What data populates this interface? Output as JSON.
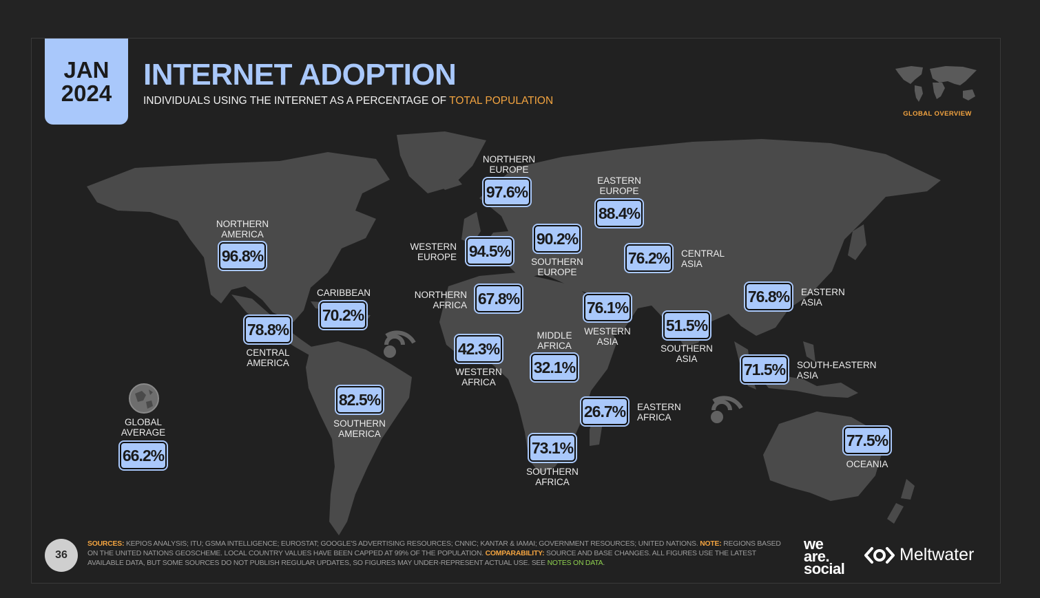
{
  "header": {
    "date_month": "JAN",
    "date_year": "2024",
    "title": "INTERNET ADOPTION",
    "subtitle_prefix": "INDIVIDUALS USING THE INTERNET AS A PERCENTAGE OF",
    "subtitle_highlight": "TOTAL POPULATION",
    "overview_label": "GLOBAL OVERVIEW"
  },
  "colors": {
    "accent_blue": "#a9c8fb",
    "accent_orange": "#f3a440",
    "map_land": "#4a4a4a",
    "background": "#212121"
  },
  "icons": {
    "watermark": "broadcast-logo-icon",
    "global": "globe-icon",
    "meltwater": "meltwater-logo-icon"
  },
  "regions": [
    {
      "name": "NORTHERN\nEUROPE",
      "value": "97.6%"
    },
    {
      "name": "EASTERN\nEUROPE",
      "value": "88.4%"
    },
    {
      "name": "NORTHERN\nAMERICA",
      "value": "96.8%"
    },
    {
      "name": "WESTERN\nEUROPE",
      "value": "94.5%"
    },
    {
      "name": "SOUTHERN\nEUROPE",
      "value": "90.2%"
    },
    {
      "name": "CENTRAL\nASIA",
      "value": "76.2%"
    },
    {
      "name": "CARIBBEAN",
      "value": "70.2%"
    },
    {
      "name": "NORTHERN\nAFRICA",
      "value": "67.8%"
    },
    {
      "name": "EASTERN\nASIA",
      "value": "76.8%"
    },
    {
      "name": "WESTERN\nASIA",
      "value": "76.1%"
    },
    {
      "name": "CENTRAL\nAMERICA",
      "value": "78.8%"
    },
    {
      "name": "SOUTHERN\nASIA",
      "value": "51.5%"
    },
    {
      "name": "MIDDLE\nAFRICA",
      "value": "32.1%"
    },
    {
      "name": "WESTERN\nAFRICA",
      "value": "42.3%"
    },
    {
      "name": "SOUTH-EASTERN\nASIA",
      "value": "71.5%"
    },
    {
      "name": "SOUTHERN\nAMERICA",
      "value": "82.5%"
    },
    {
      "name": "EASTERN\nAFRICA",
      "value": "26.7%"
    },
    {
      "name": "SOUTHERN\nAFRICA",
      "value": "73.1%"
    },
    {
      "name": "OCEANIA",
      "value": "77.5%"
    }
  ],
  "global_average": {
    "label": "GLOBAL\nAVERAGE",
    "value": "66.2%"
  },
  "footer": {
    "page_number": "36",
    "sources_key": "SOURCES:",
    "sources_text": "KEPIOS ANALYSIS; ITU; GSMA INTELLIGENCE; EUROSTAT; GOOGLE'S ADVERTISING RESOURCES; CNNIC; KANTAR & IAMAI; GOVERNMENT RESOURCES; UNITED NATIONS.",
    "note_key": "NOTE:",
    "note_text": "REGIONS BASED ON THE UNITED NATIONS GEOSCHEME. LOCAL COUNTRY VALUES HAVE BEEN CAPPED AT 99% OF THE POPULATION.",
    "comparability_key": "COMPARABILITY:",
    "comparability_text": "SOURCE AND BASE CHANGES. ALL FIGURES USE THE LATEST AVAILABLE DATA, BUT SOME SOURCES DO NOT PUBLISH REGULAR UPDATES, SO FIGURES MAY UNDER-REPRESENT ACTUAL USE. SEE",
    "notes_link": "NOTES ON DATA",
    "notes_end": ".",
    "brand_we": "we",
    "brand_are": "are.",
    "brand_social": "social",
    "brand_meltwater": "Meltwater"
  }
}
